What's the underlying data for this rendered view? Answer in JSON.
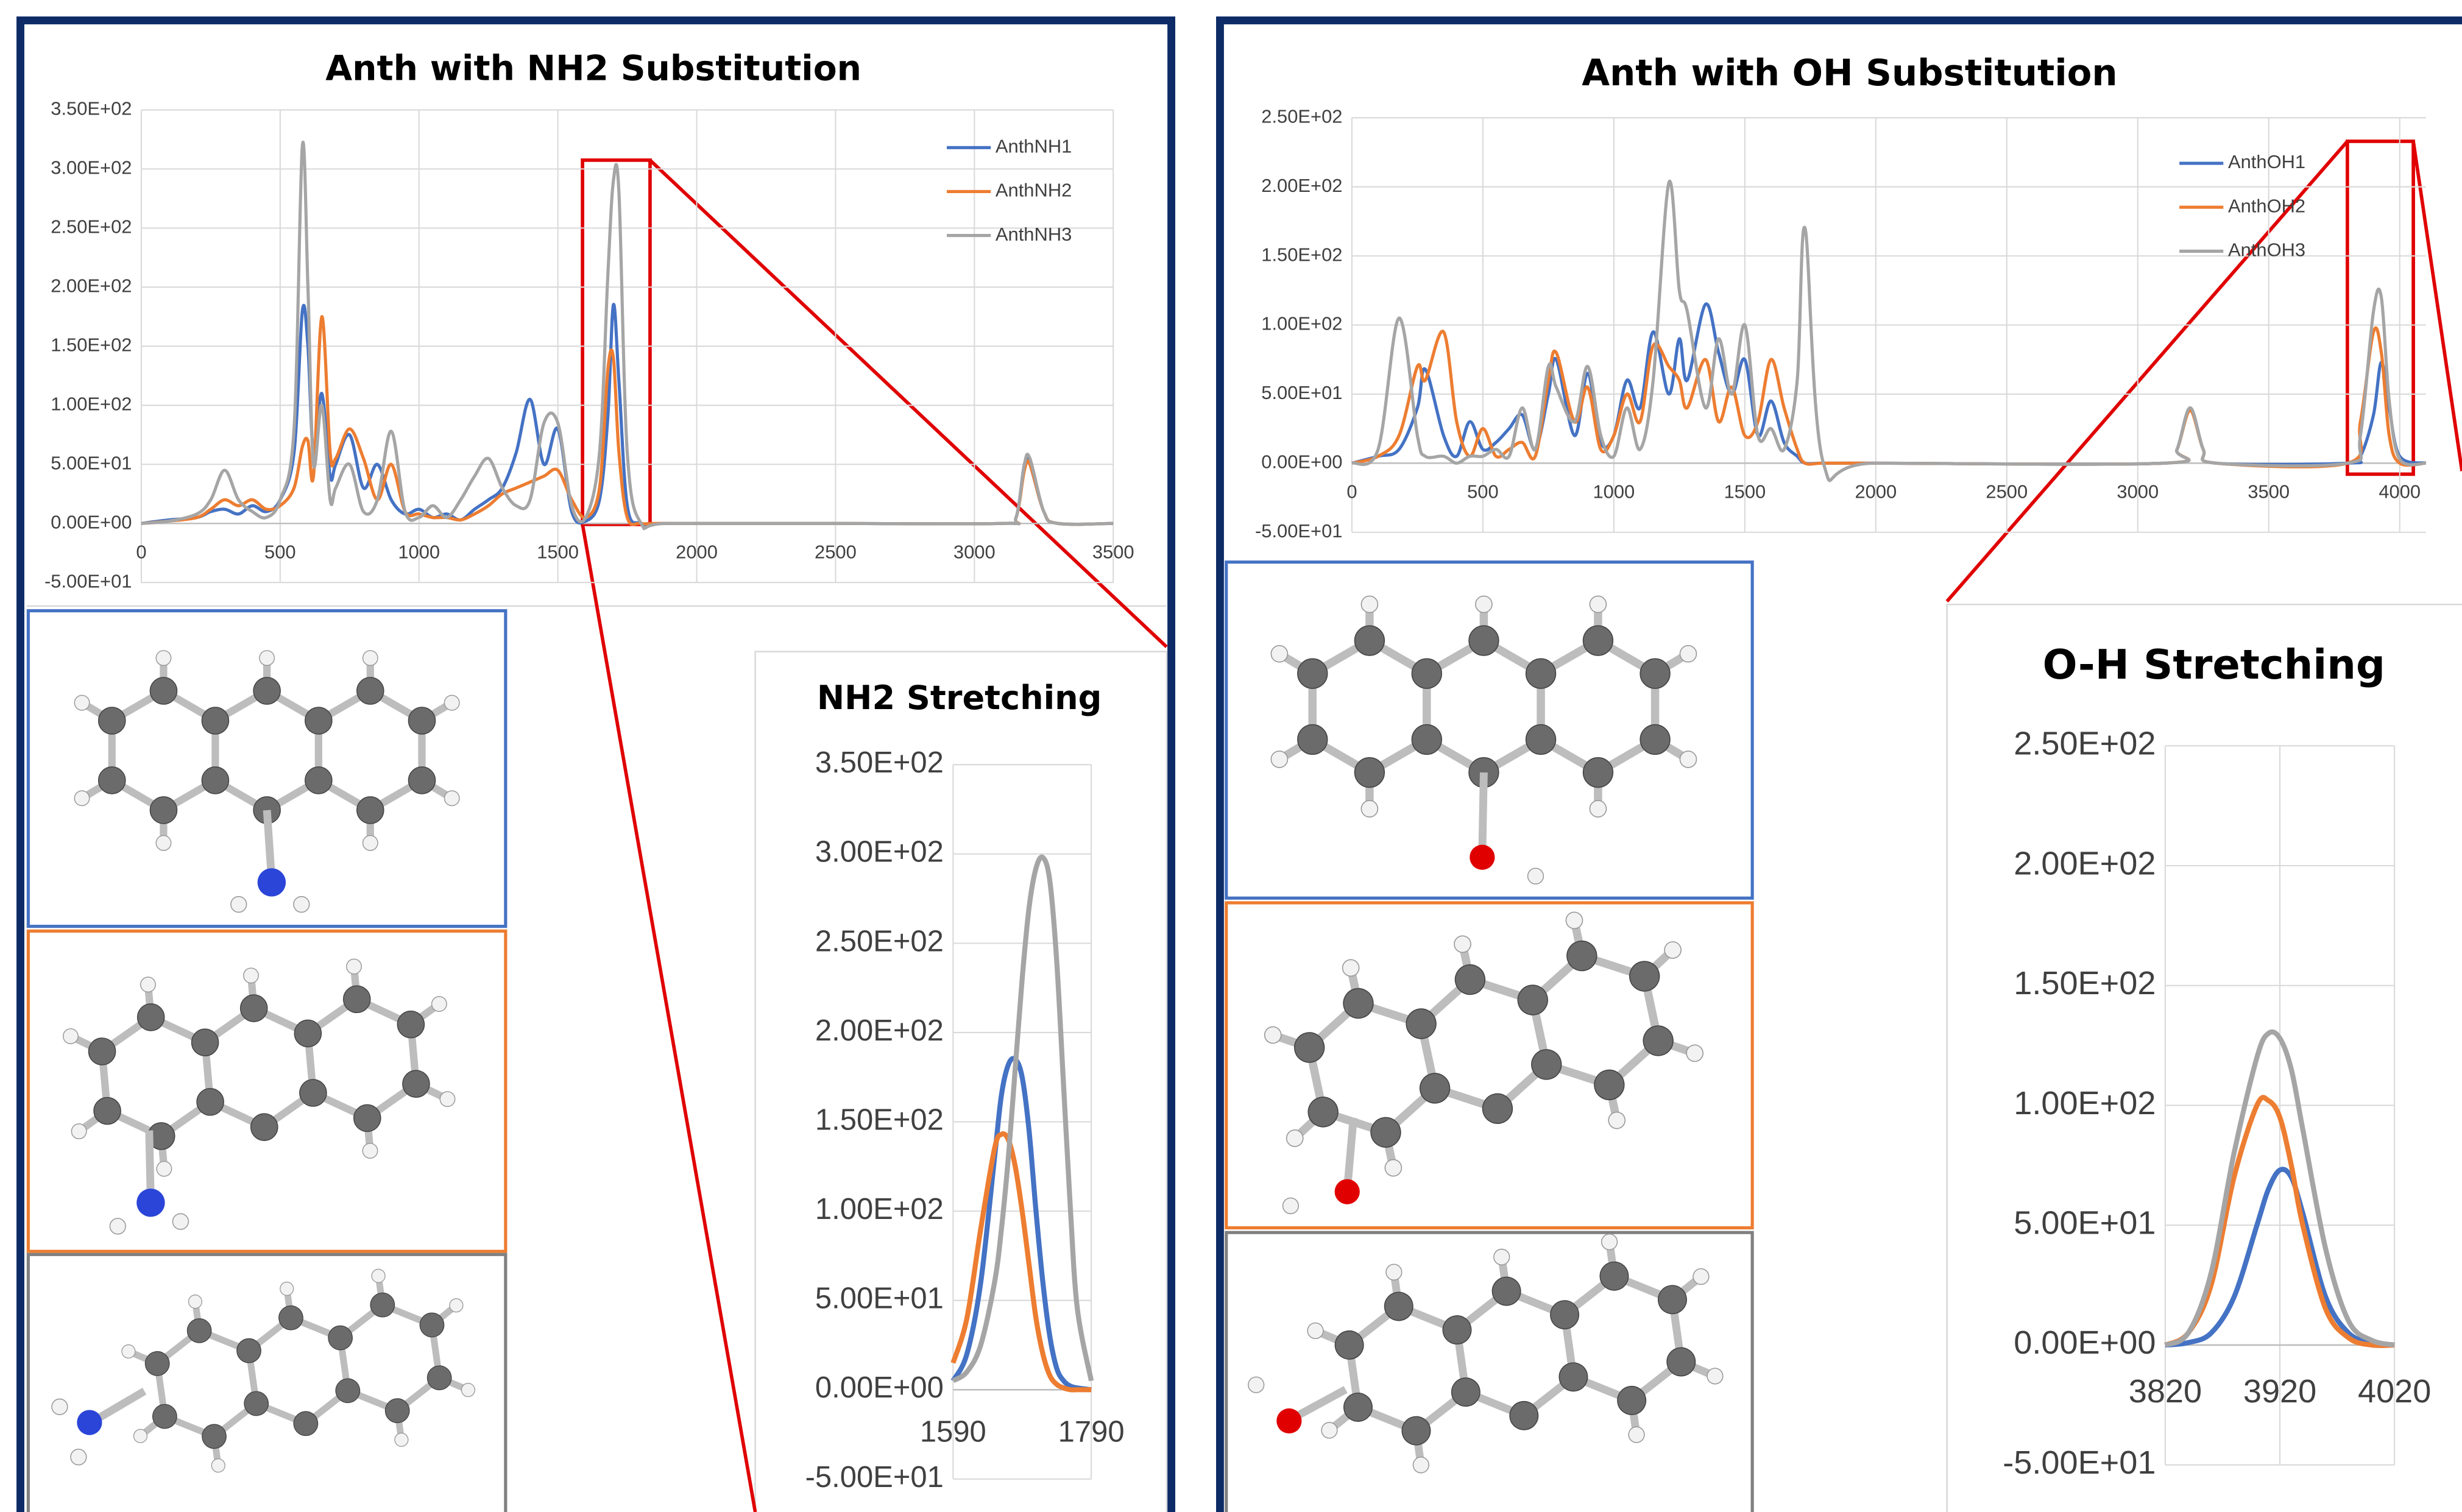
{
  "chart_data": [
    {
      "type": "line",
      "title": "Anth with NH2 Substitution",
      "x": [
        0,
        100,
        200,
        250,
        300,
        350,
        400,
        450,
        500,
        550,
        580,
        600,
        620,
        650,
        680,
        700,
        750,
        800,
        850,
        900,
        950,
        1000,
        1050,
        1100,
        1150,
        1200,
        1250,
        1300,
        1350,
        1400,
        1450,
        1500,
        1550,
        1600,
        1650,
        1680,
        1700,
        1720,
        1750,
        1800,
        1900,
        2500,
        3100,
        3150,
        3180,
        3200,
        3250,
        3300,
        3500
      ],
      "series": [
        {
          "name": "AnthNH1",
          "color": "#4472c4",
          "values": [
            0,
            3,
            5,
            10,
            12,
            8,
            15,
            10,
            20,
            60,
            180,
            150,
            60,
            110,
            40,
            50,
            75,
            30,
            50,
            20,
            8,
            12,
            5,
            8,
            3,
            12,
            20,
            30,
            60,
            105,
            50,
            80,
            10,
            2,
            20,
            90,
            185,
            120,
            15,
            0,
            0,
            0,
            0,
            5,
            50,
            50,
            10,
            0,
            0
          ]
        },
        {
          "name": "AnthNH2",
          "color": "#ed7d31",
          "values": [
            0,
            2,
            5,
            12,
            20,
            15,
            20,
            12,
            15,
            30,
            65,
            70,
            40,
            175,
            60,
            55,
            80,
            55,
            20,
            50,
            10,
            8,
            5,
            5,
            3,
            8,
            15,
            25,
            30,
            35,
            40,
            45,
            20,
            5,
            30,
            130,
            140,
            60,
            5,
            0,
            0,
            0,
            0,
            5,
            45,
            50,
            10,
            0,
            0
          ]
        },
        {
          "name": "AnthNH3",
          "color": "#a5a5a5",
          "values": [
            0,
            2,
            8,
            20,
            45,
            20,
            10,
            5,
            20,
            80,
            320,
            200,
            50,
            100,
            20,
            30,
            50,
            10,
            20,
            78,
            10,
            5,
            15,
            5,
            20,
            40,
            55,
            30,
            15,
            20,
            85,
            85,
            15,
            5,
            60,
            210,
            290,
            280,
            60,
            0,
            0,
            0,
            0,
            5,
            50,
            55,
            10,
            0,
            0
          ]
        }
      ],
      "xlim": [
        0,
        3500
      ],
      "xticks": [
        0,
        500,
        1000,
        1500,
        2000,
        2500,
        3000,
        3500
      ],
      "ylim": [
        -50,
        350
      ],
      "yticks": [
        {
          "value": -50,
          "label": "-5.00E+01"
        },
        {
          "value": 0,
          "label": "0.00E+00"
        },
        {
          "value": 50,
          "label": "5.00E+01"
        },
        {
          "value": 100,
          "label": "1.00E+02"
        },
        {
          "value": 150,
          "label": "1.50E+02"
        },
        {
          "value": 200,
          "label": "2.00E+02"
        },
        {
          "value": 250,
          "label": "2.50E+02"
        },
        {
          "value": 300,
          "label": "3.00E+02"
        },
        {
          "value": 350,
          "label": "3.50E+02"
        }
      ],
      "grid": true,
      "legend": "top-right"
    },
    {
      "type": "line",
      "title": "NH2 Stretching",
      "x": [
        1590,
        1610,
        1630,
        1650,
        1660,
        1670,
        1680,
        1690,
        1700,
        1710,
        1720,
        1730,
        1740,
        1750,
        1760,
        1770,
        1790
      ],
      "series": [
        {
          "color": "#4472c4",
          "values": [
            5,
            20,
            60,
            130,
            165,
            182,
            185,
            175,
            145,
            100,
            60,
            30,
            12,
            5,
            2,
            1,
            0
          ]
        },
        {
          "color": "#ed7d31",
          "values": [
            15,
            40,
            90,
            135,
            143,
            140,
            125,
            100,
            70,
            40,
            20,
            8,
            3,
            1,
            0,
            0,
            0
          ]
        },
        {
          "color": "#a5a5a5",
          "values": [
            5,
            10,
            25,
            60,
            90,
            130,
            180,
            230,
            270,
            292,
            298,
            285,
            240,
            170,
            100,
            45,
            5
          ]
        }
      ],
      "xlim": [
        1590,
        1790
      ],
      "xticks": [
        1590,
        1790
      ],
      "ylim": [
        -50,
        350
      ],
      "yticks": [
        {
          "value": -50,
          "label": "-5.00E+01"
        },
        {
          "value": 0,
          "label": "0.00E+00"
        },
        {
          "value": 50,
          "label": "5.00E+01"
        },
        {
          "value": 100,
          "label": "1.00E+02"
        },
        {
          "value": 150,
          "label": "1.50E+02"
        },
        {
          "value": 200,
          "label": "2.00E+02"
        },
        {
          "value": 250,
          "label": "2.50E+02"
        },
        {
          "value": 300,
          "label": "3.00E+02"
        },
        {
          "value": 350,
          "label": "3.50E+02"
        }
      ],
      "grid": true
    },
    {
      "type": "line",
      "title": "Anth with OH Substitution",
      "x": [
        0,
        100,
        180,
        250,
        280,
        350,
        400,
        450,
        500,
        550,
        600,
        650,
        700,
        750,
        780,
        850,
        900,
        950,
        1000,
        1050,
        1100,
        1150,
        1210,
        1250,
        1280,
        1350,
        1400,
        1450,
        1500,
        1550,
        1600,
        1650,
        1700,
        1730,
        1800,
        2000,
        3100,
        3150,
        3200,
        3250,
        3300,
        3800,
        3850,
        3900,
        3930,
        3960,
        4000,
        4100
      ],
      "series": [
        {
          "name": "AnthOH1",
          "color": "#4472c4",
          "values": [
            0,
            5,
            10,
            40,
            68,
            20,
            5,
            30,
            10,
            15,
            25,
            35,
            10,
            50,
            75,
            20,
            65,
            15,
            20,
            60,
            40,
            95,
            50,
            90,
            60,
            115,
            80,
            50,
            75,
            20,
            45,
            15,
            5,
            0,
            0,
            0,
            0,
            10,
            40,
            10,
            0,
            0,
            5,
            35,
            73,
            40,
            5,
            0
          ]
        },
        {
          "name": "AnthOH2",
          "color": "#ed7d31",
          "values": [
            0,
            5,
            20,
            70,
            60,
            95,
            30,
            5,
            25,
            5,
            10,
            15,
            5,
            60,
            80,
            30,
            55,
            10,
            20,
            50,
            30,
            85,
            70,
            60,
            40,
            75,
            30,
            55,
            20,
            30,
            75,
            40,
            10,
            0,
            0,
            0,
            0,
            10,
            38,
            10,
            0,
            0,
            30,
            95,
            80,
            20,
            0,
            0
          ]
        },
        {
          "name": "AnthOH3",
          "color": "#a5a5a5",
          "values": [
            0,
            10,
            105,
            20,
            5,
            5,
            0,
            5,
            5,
            10,
            5,
            40,
            10,
            70,
            55,
            30,
            70,
            20,
            5,
            40,
            10,
            60,
            203,
            125,
            110,
            40,
            90,
            50,
            100,
            20,
            25,
            10,
            60,
            170,
            0,
            0,
            0,
            10,
            40,
            10,
            0,
            0,
            20,
            110,
            120,
            45,
            3,
            0
          ]
        }
      ],
      "xlim": [
        0,
        4100
      ],
      "xticks": [
        0,
        500,
        1000,
        1500,
        2000,
        2500,
        3000,
        3500,
        4000
      ],
      "ylim": [
        -50,
        250
      ],
      "yticks": [
        {
          "value": -50,
          "label": "-5.00E+01"
        },
        {
          "value": 0,
          "label": "0.00E+00"
        },
        {
          "value": 50,
          "label": "5.00E+01"
        },
        {
          "value": 100,
          "label": "1.00E+02"
        },
        {
          "value": 150,
          "label": "1.50E+02"
        },
        {
          "value": 200,
          "label": "2.00E+02"
        },
        {
          "value": 250,
          "label": "2.50E+02"
        }
      ],
      "grid": true,
      "legend": "top-right"
    },
    {
      "type": "line",
      "title": "O-H Stretching",
      "x": [
        3820,
        3840,
        3860,
        3880,
        3900,
        3910,
        3920,
        3930,
        3940,
        3960,
        3980,
        4000,
        4020
      ],
      "series": [
        {
          "color": "#4472c4",
          "values": [
            0,
            1,
            5,
            20,
            50,
            65,
            73,
            70,
            55,
            20,
            5,
            1,
            0
          ]
        },
        {
          "color": "#ed7d31",
          "values": [
            0,
            5,
            25,
            70,
            100,
            102,
            95,
            75,
            50,
            15,
            3,
            0,
            0
          ]
        },
        {
          "color": "#a5a5a5",
          "values": [
            0,
            5,
            30,
            80,
            120,
            130,
            128,
            115,
            90,
            40,
            10,
            2,
            0
          ]
        }
      ],
      "xlim": [
        3820,
        4020
      ],
      "xticks": [
        3820,
        3920,
        4020
      ],
      "ylim": [
        -50,
        250
      ],
      "yticks": [
        {
          "value": -50,
          "label": "-5.00E+01"
        },
        {
          "value": 0,
          "label": "0.00E+00"
        },
        {
          "value": 50,
          "label": "5.00E+01"
        },
        {
          "value": 100,
          "label": "1.00E+02"
        },
        {
          "value": 150,
          "label": "1.50E+02"
        },
        {
          "value": 200,
          "label": "2.00E+02"
        },
        {
          "value": 250,
          "label": "2.50E+02"
        }
      ],
      "grid": true
    }
  ]
}
